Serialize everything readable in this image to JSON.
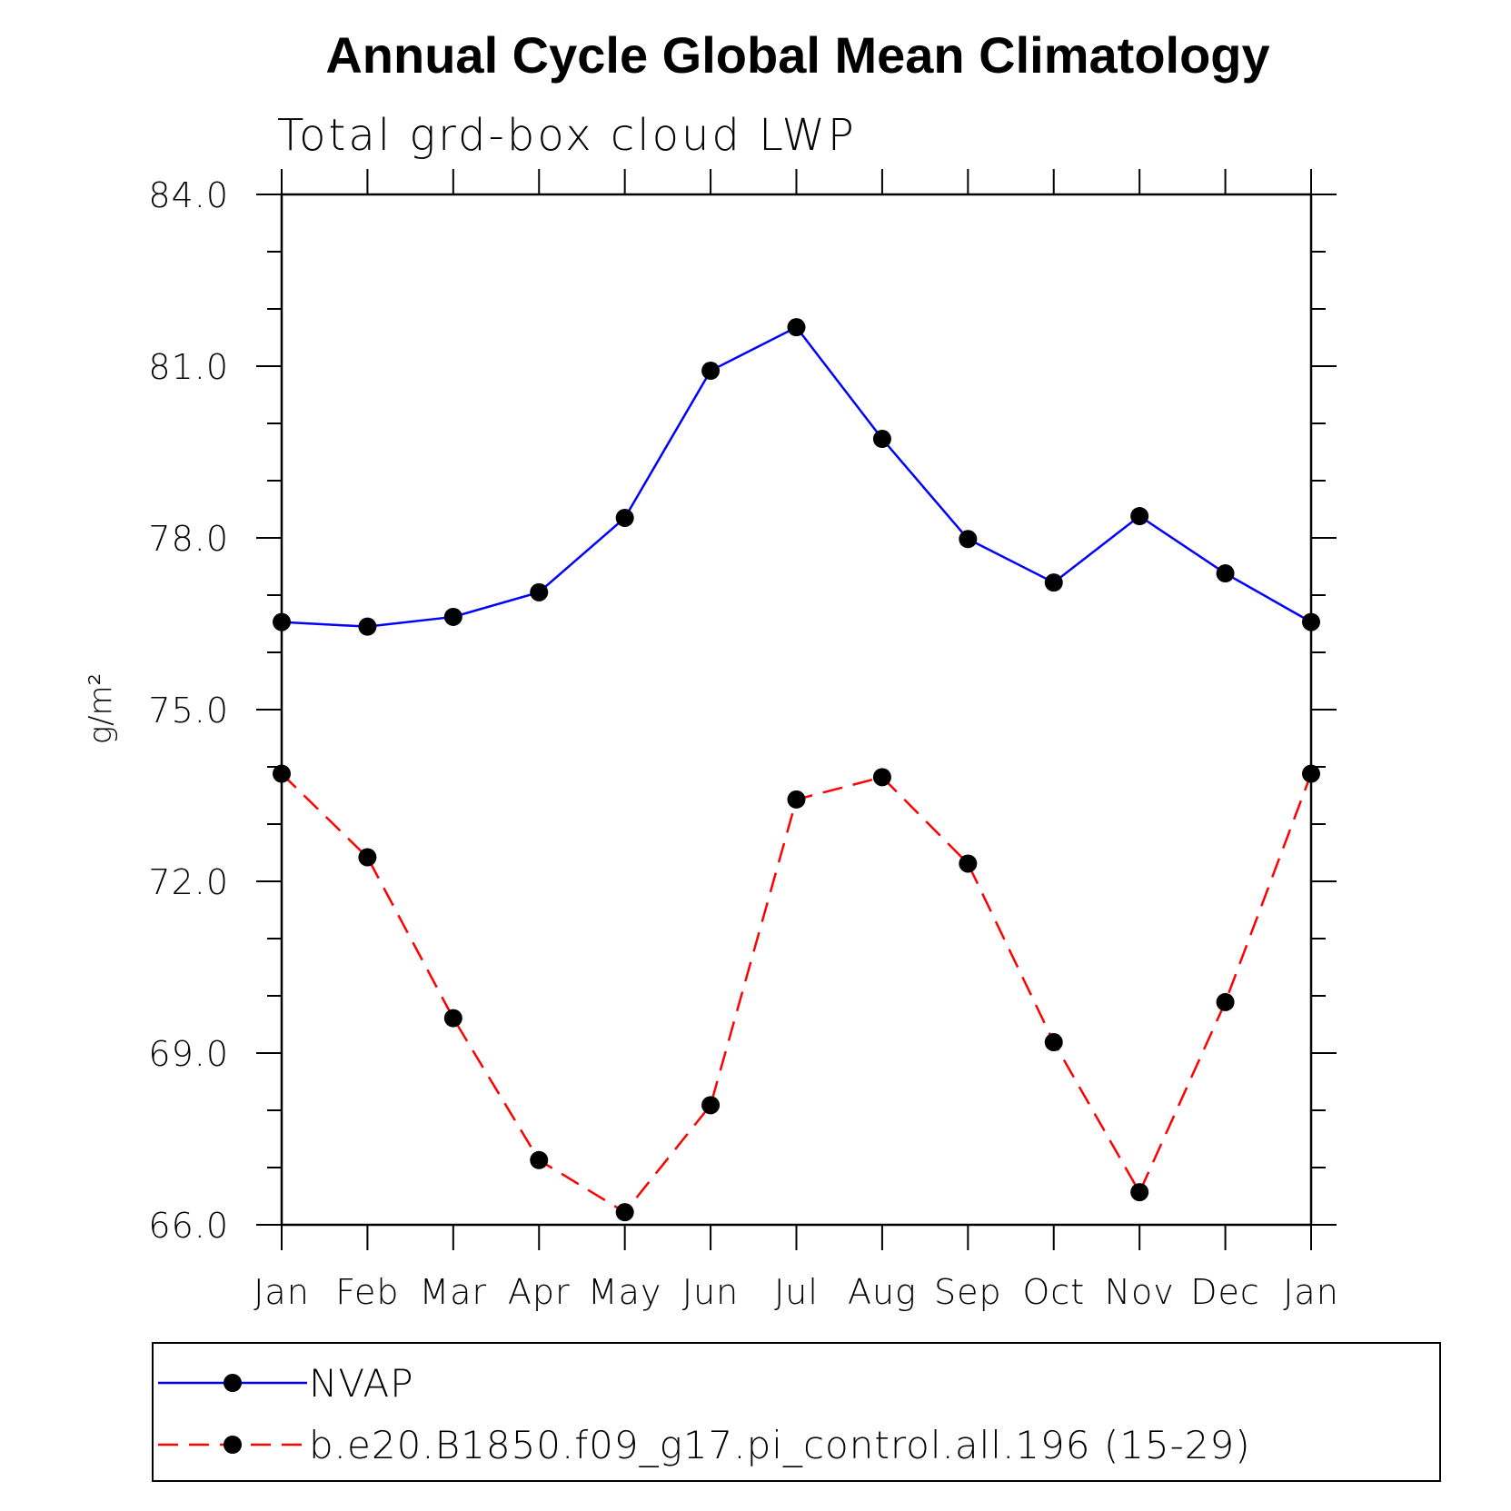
{
  "chart_data": {
    "type": "line",
    "title": "Annual Cycle Global Mean Climatology",
    "subtitle": "Total grd-box cloud LWP",
    "xlabel": "",
    "ylabel": "g/m²",
    "categories": [
      "Jan",
      "Feb",
      "Mar",
      "Apr",
      "May",
      "Jun",
      "Jul",
      "Aug",
      "Sep",
      "Oct",
      "Nov",
      "Dec",
      "Jan"
    ],
    "ylim": [
      66.0,
      84.0
    ],
    "yticks": [
      "84.0",
      "81.0",
      "78.0",
      "75.0",
      "72.0",
      "69.0",
      "66.0"
    ],
    "series": [
      {
        "name": "NVAP",
        "color": "#0000ff",
        "line_style": "solid",
        "marker": "filled-circle",
        "values": [
          76.53,
          76.45,
          76.62,
          77.05,
          78.35,
          80.92,
          81.68,
          79.73,
          77.98,
          77.22,
          78.38,
          77.38,
          76.53
        ]
      },
      {
        "name": "b.e20.B1850.f09_g17.pi_control.all.196 (15-29)",
        "color": "#ff0000",
        "line_style": "dashed",
        "marker": "filled-circle",
        "values": [
          73.88,
          72.42,
          69.61,
          67.13,
          66.22,
          68.09,
          73.43,
          73.82,
          72.31,
          69.19,
          66.57,
          69.89,
          73.88
        ]
      }
    ],
    "grid": false,
    "legend_position": "bottom"
  }
}
